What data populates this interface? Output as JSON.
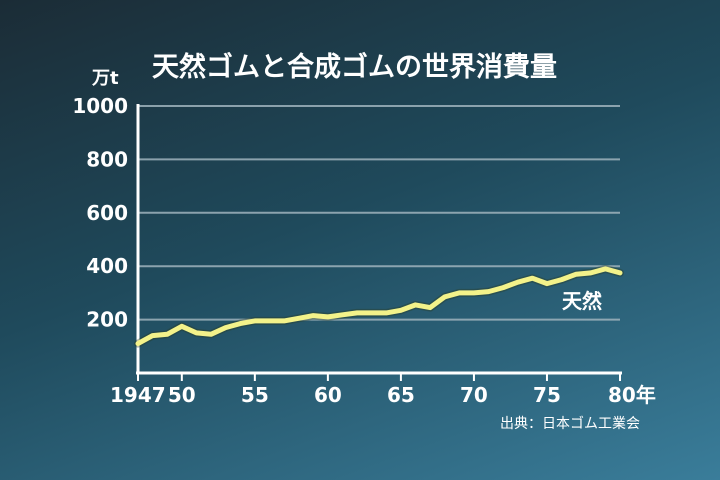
{
  "chart_data": {
    "type": "line",
    "title": "天然ゴムと合成ゴムの世界消費量",
    "ylabel": "万t",
    "xlabel": "",
    "ylim": [
      0,
      1000
    ],
    "xlim": [
      1947,
      1980
    ],
    "y_ticks": [
      200,
      400,
      600,
      800,
      1000
    ],
    "y_tick_labels": [
      "200",
      "400",
      "600",
      "800",
      "1000"
    ],
    "x_ticks": [
      1947,
      1950,
      1955,
      1960,
      1965,
      1970,
      1975,
      1980
    ],
    "x_tick_labels": [
      "1947",
      "50",
      "55",
      "60",
      "65",
      "70",
      "75",
      "80年"
    ],
    "grid": true,
    "series": [
      {
        "name": "天然",
        "color": "#f3f28a",
        "x": [
          1947,
          1948,
          1949,
          1950,
          1951,
          1952,
          1953,
          1954,
          1955,
          1956,
          1957,
          1958,
          1959,
          1960,
          1961,
          1962,
          1963,
          1964,
          1965,
          1966,
          1967,
          1968,
          1969,
          1970,
          1971,
          1972,
          1973,
          1974,
          1975,
          1976,
          1977,
          1978,
          1979,
          1980
        ],
        "values": [
          110,
          140,
          145,
          175,
          150,
          145,
          170,
          185,
          195,
          195,
          195,
          205,
          215,
          210,
          218,
          225,
          225,
          225,
          235,
          255,
          245,
          285,
          300,
          300,
          305,
          320,
          340,
          355,
          335,
          350,
          370,
          375,
          390,
          375
        ]
      }
    ],
    "source": "出典：日本ゴム工業会"
  }
}
